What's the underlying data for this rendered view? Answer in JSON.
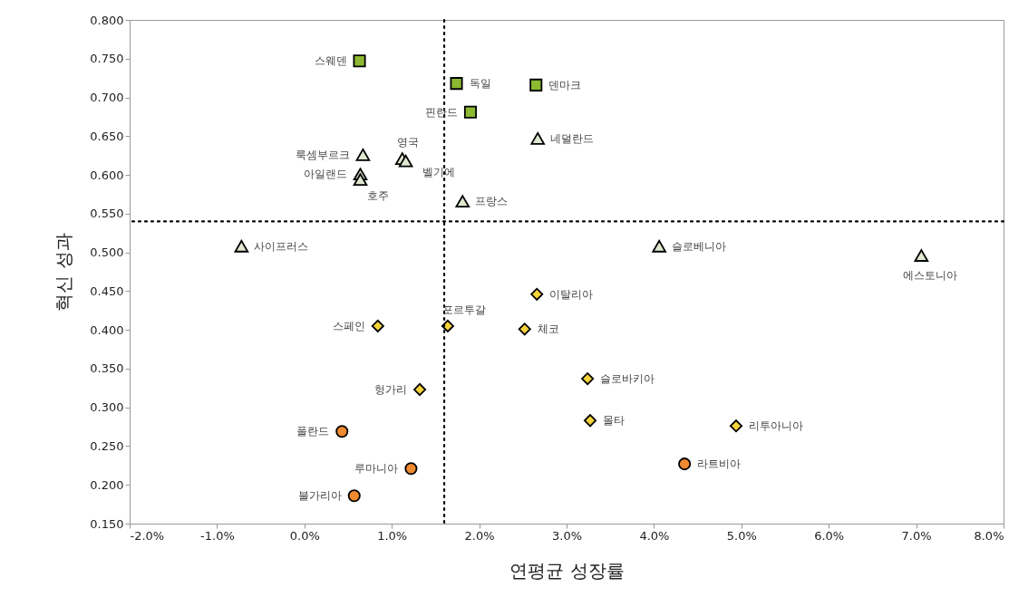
{
  "chart_data": {
    "type": "scatter",
    "xlabel": "연평균 성장률",
    "ylabel": "혁신 성과",
    "xlim": [
      -2,
      8
    ],
    "ylim": [
      0.15,
      0.8
    ],
    "xticks": [
      {
        "value": -2,
        "label": "-2.0%"
      },
      {
        "value": -1,
        "label": "-1.0%"
      },
      {
        "value": 0,
        "label": "0.0%"
      },
      {
        "value": 1,
        "label": "1.0%"
      },
      {
        "value": 2,
        "label": "2.0%"
      },
      {
        "value": 3,
        "label": "3.0%"
      },
      {
        "value": 4,
        "label": "4.0%"
      },
      {
        "value": 5,
        "label": "5.0%"
      },
      {
        "value": 6,
        "label": "6.0%"
      },
      {
        "value": 7,
        "label": "7.0%"
      },
      {
        "value": 8,
        "label": "8.0%"
      }
    ],
    "yticks": [
      {
        "value": 0.15,
        "label": "0.150"
      },
      {
        "value": 0.2,
        "label": "0.200"
      },
      {
        "value": 0.25,
        "label": "0.250"
      },
      {
        "value": 0.3,
        "label": "0.300"
      },
      {
        "value": 0.35,
        "label": "0.350"
      },
      {
        "value": 0.4,
        "label": "0.400"
      },
      {
        "value": 0.45,
        "label": "0.450"
      },
      {
        "value": 0.5,
        "label": "0.500"
      },
      {
        "value": 0.55,
        "label": "0.550"
      },
      {
        "value": 0.6,
        "label": "0.600"
      },
      {
        "value": 0.65,
        "label": "0.650"
      },
      {
        "value": 0.7,
        "label": "0.700"
      },
      {
        "value": 0.75,
        "label": "0.750"
      },
      {
        "value": 0.8,
        "label": "0.800"
      }
    ],
    "grid": false,
    "series": [
      {
        "color": "#8db832",
        "marker": "square",
        "x": [
          0.63,
          1.74,
          2.65,
          1.9
        ],
        "values": [
          0.747,
          0.718,
          0.716,
          0.681
        ]
      },
      {
        "color": "#dfe8d0",
        "marker": "triangle",
        "x": [
          2.67,
          0.67,
          1.12,
          1.16,
          0.64,
          0.64,
          1.81,
          -0.72,
          4.06,
          7.06
        ],
        "values": [
          0.647,
          0.626,
          0.621,
          0.618,
          0.601,
          0.594,
          0.566,
          0.508,
          0.508,
          0.496
        ]
      },
      {
        "color": "#f5d33a",
        "marker": "diamond",
        "x": [
          2.66,
          1.64,
          0.84,
          2.52,
          3.24,
          1.32,
          3.27,
          4.94
        ],
        "values": [
          0.446,
          0.405,
          0.405,
          0.401,
          0.337,
          0.323,
          0.283,
          0.276
        ]
      },
      {
        "color": "#f08a30",
        "marker": "circle",
        "x": [
          0.43,
          1.22,
          0.57,
          4.35
        ],
        "values": [
          0.269,
          0.221,
          0.186,
          0.227
        ]
      }
    ],
    "ref_lines": [
      {
        "axis": "x",
        "value": 1.6,
        "line_style": "dotted",
        "color": "#000000"
      },
      {
        "axis": "y",
        "value": 0.54,
        "line_style": "dotted",
        "color": "#000000"
      }
    ],
    "annotations": [
      {
        "text": "스웨덴",
        "x": 0.63,
        "y": 0.747
      },
      {
        "text": "독일",
        "x": 1.74,
        "y": 0.718
      },
      {
        "text": "덴마크",
        "x": 2.65,
        "y": 0.716
      },
      {
        "text": "핀란드",
        "x": 1.9,
        "y": 0.681
      },
      {
        "text": "네덜란드",
        "x": 2.67,
        "y": 0.647
      },
      {
        "text": "룩셈부르크",
        "x": 0.67,
        "y": 0.626
      },
      {
        "text": "영국",
        "x": 1.12,
        "y": 0.621
      },
      {
        "text": "벨기에",
        "x": 1.16,
        "y": 0.618
      },
      {
        "text": "아일랜드",
        "x": 0.64,
        "y": 0.601
      },
      {
        "text": "호주",
        "x": 0.64,
        "y": 0.594
      },
      {
        "text": "프랑스",
        "x": 1.81,
        "y": 0.566
      },
      {
        "text": "사이프러스",
        "x": -0.72,
        "y": 0.508
      },
      {
        "text": "슬로베니아",
        "x": 4.06,
        "y": 0.508
      },
      {
        "text": "에스토니아",
        "x": 7.06,
        "y": 0.496
      },
      {
        "text": "이탈리아",
        "x": 2.66,
        "y": 0.446
      },
      {
        "text": "포르투갈",
        "x": 1.64,
        "y": 0.405
      },
      {
        "text": "스페인",
        "x": 0.84,
        "y": 0.405
      },
      {
        "text": "체코",
        "x": 2.52,
        "y": 0.401
      },
      {
        "text": "슬로바키아",
        "x": 3.24,
        "y": 0.337
      },
      {
        "text": "헝가리",
        "x": 1.32,
        "y": 0.323
      },
      {
        "text": "몰타",
        "x": 3.27,
        "y": 0.283
      },
      {
        "text": "리투아니아",
        "x": 4.94,
        "y": 0.276
      },
      {
        "text": "폴란드",
        "x": 0.43,
        "y": 0.269
      },
      {
        "text": "루마니아",
        "x": 1.22,
        "y": 0.221
      },
      {
        "text": "불가리아",
        "x": 0.57,
        "y": 0.186
      },
      {
        "text": "라트비아",
        "x": 4.35,
        "y": 0.227
      }
    ]
  }
}
